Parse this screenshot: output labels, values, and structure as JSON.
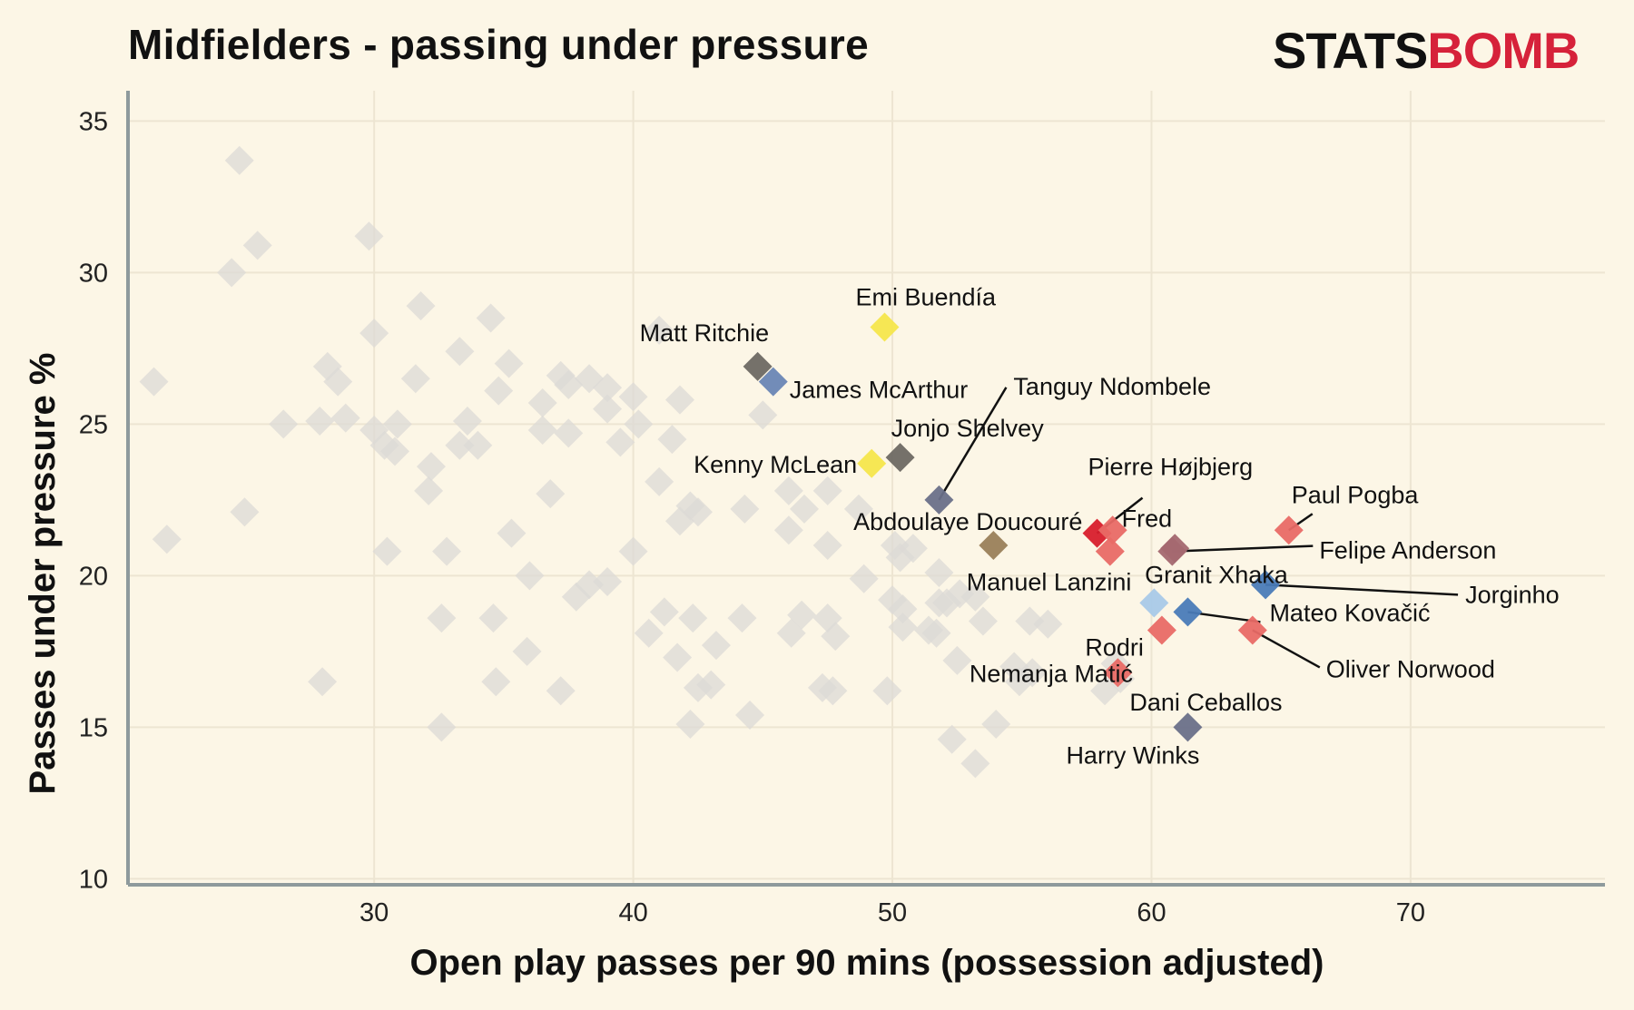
{
  "header": {
    "title": "Midfielders - passing under pressure",
    "logo_part1": "STATS",
    "logo_part2": "BOMB"
  },
  "colors": {
    "background": "#fcf6e6",
    "grid": "#ede5d2",
    "axis": "#8e9a9c",
    "background_points": "#dcdad6",
    "logo_black": "#111111",
    "logo_red": "#d6223a"
  },
  "chart_data": {
    "type": "scatter",
    "xlabel": "Open play passes per 90 mins (possession adjusted)",
    "ylabel": "Passes under pressure %",
    "xlim": [
      20.5,
      77.5
    ],
    "ylim": [
      9.8,
      36.0
    ],
    "xticks": [
      30,
      40,
      50,
      60,
      70
    ],
    "yticks": [
      10,
      15,
      20,
      25,
      30,
      35
    ],
    "grid": true,
    "marker": "diamond",
    "background_points": [
      [
        24.8,
        33.7
      ],
      [
        29.8,
        31.2
      ],
      [
        25.5,
        30.9
      ],
      [
        24.5,
        30.0
      ],
      [
        31.8,
        28.9
      ],
      [
        34.5,
        28.5
      ],
      [
        30.0,
        28.0
      ],
      [
        41.0,
        28.1
      ],
      [
        21.5,
        26.4
      ],
      [
        28.2,
        26.9
      ],
      [
        28.6,
        26.4
      ],
      [
        31.6,
        26.5
      ],
      [
        33.3,
        27.4
      ],
      [
        35.2,
        27.0
      ],
      [
        37.2,
        26.6
      ],
      [
        38.3,
        26.5
      ],
      [
        34.8,
        26.1
      ],
      [
        37.5,
        26.3
      ],
      [
        39.0,
        26.2
      ],
      [
        41.8,
        25.8
      ],
      [
        36.5,
        25.7
      ],
      [
        39.0,
        25.5
      ],
      [
        40.0,
        25.9
      ],
      [
        45.0,
        25.3
      ],
      [
        26.5,
        25.0
      ],
      [
        27.9,
        25.1
      ],
      [
        28.9,
        25.2
      ],
      [
        30.0,
        24.8
      ],
      [
        30.4,
        24.3
      ],
      [
        30.9,
        25.0
      ],
      [
        30.8,
        24.1
      ],
      [
        33.3,
        24.3
      ],
      [
        33.6,
        25.1
      ],
      [
        34.0,
        24.3
      ],
      [
        36.5,
        24.8
      ],
      [
        37.5,
        24.7
      ],
      [
        39.5,
        24.4
      ],
      [
        40.2,
        25.0
      ],
      [
        41.5,
        24.5
      ],
      [
        32.2,
        23.6
      ],
      [
        32.1,
        22.8
      ],
      [
        22.0,
        21.2
      ],
      [
        25.0,
        22.1
      ],
      [
        36.8,
        22.7
      ],
      [
        41.0,
        23.1
      ],
      [
        42.2,
        22.3
      ],
      [
        44.3,
        22.2
      ],
      [
        46.0,
        22.8
      ],
      [
        46.6,
        22.2
      ],
      [
        47.5,
        22.8
      ],
      [
        48.7,
        22.2
      ],
      [
        42.5,
        22.1
      ],
      [
        41.8,
        21.8
      ],
      [
        35.3,
        21.4
      ],
      [
        46.0,
        21.5
      ],
      [
        47.5,
        21.0
      ],
      [
        50.1,
        21.0
      ],
      [
        50.8,
        20.9
      ],
      [
        51.8,
        20.1
      ],
      [
        50.3,
        20.6
      ],
      [
        40.0,
        20.8
      ],
      [
        30.5,
        20.8
      ],
      [
        32.8,
        20.8
      ],
      [
        36.0,
        20.0
      ],
      [
        39.0,
        19.8
      ],
      [
        38.3,
        19.7
      ],
      [
        37.8,
        19.3
      ],
      [
        41.2,
        18.8
      ],
      [
        42.3,
        18.6
      ],
      [
        48.9,
        19.9
      ],
      [
        50.0,
        19.2
      ],
      [
        50.4,
        18.9
      ],
      [
        51.8,
        19.1
      ],
      [
        52.1,
        19.1
      ],
      [
        52.6,
        19.4
      ],
      [
        53.2,
        19.3
      ],
      [
        44.2,
        18.6
      ],
      [
        46.5,
        18.7
      ],
      [
        47.5,
        18.6
      ],
      [
        50.4,
        18.3
      ],
      [
        51.4,
        18.2
      ],
      [
        51.7,
        18.1
      ],
      [
        32.6,
        18.6
      ],
      [
        34.6,
        18.6
      ],
      [
        40.6,
        18.1
      ],
      [
        41.7,
        17.3
      ],
      [
        43.2,
        17.7
      ],
      [
        46.1,
        18.1
      ],
      [
        53.5,
        18.5
      ],
      [
        55.3,
        18.5
      ],
      [
        35.9,
        17.5
      ],
      [
        28.0,
        16.5
      ],
      [
        34.7,
        16.5
      ],
      [
        37.2,
        16.2
      ],
      [
        42.5,
        16.3
      ],
      [
        43.0,
        16.4
      ],
      [
        47.3,
        16.3
      ],
      [
        47.7,
        16.2
      ],
      [
        49.8,
        16.2
      ],
      [
        54.9,
        16.5
      ],
      [
        55.4,
        16.8
      ],
      [
        58.2,
        16.2
      ],
      [
        58.8,
        16.6
      ],
      [
        54.7,
        17.0
      ],
      [
        52.5,
        17.2
      ],
      [
        32.6,
        15.0
      ],
      [
        42.2,
        15.1
      ],
      [
        44.5,
        15.4
      ],
      [
        52.3,
        14.6
      ],
      [
        53.2,
        13.8
      ],
      [
        54.0,
        15.1
      ],
      [
        56.0,
        18.4
      ],
      [
        58.6,
        17.1
      ],
      [
        47.8,
        18.0
      ]
    ],
    "players": [
      {
        "name": "Emi Buendía",
        "x": 49.7,
        "y": 28.2,
        "color": "#f6e64c"
      },
      {
        "name": "Matt Ritchie",
        "x": 44.8,
        "y": 26.9,
        "color": "#6e6963"
      },
      {
        "name": "James McArthur",
        "x": 45.4,
        "y": 26.4,
        "color": "#6a86b5"
      },
      {
        "name": "Tanguy Ndombele",
        "x": 51.8,
        "y": 22.5,
        "color": "#6a7089"
      },
      {
        "name": "Jonjo Shelvey",
        "x": 50.3,
        "y": 23.9,
        "color": "#6e6963"
      },
      {
        "name": "Kenny McLean",
        "x": 49.2,
        "y": 23.7,
        "color": "#f6e64c"
      },
      {
        "name": "Abdoulaye Doucouré",
        "x": 53.9,
        "y": 21.0,
        "color": "#9a7f5a"
      },
      {
        "name": "Pierre Højbjerg",
        "x": 57.9,
        "y": 21.4,
        "color": "#d81d2c"
      },
      {
        "name": "Fred",
        "x": 58.5,
        "y": 21.5,
        "color": "#e96a66"
      },
      {
        "name": "Manuel Lanzini",
        "x": 58.4,
        "y": 20.8,
        "color": "#e96a66"
      },
      {
        "name": "Granit Xhaka",
        "x": 60.9,
        "y": 20.9,
        "color": "#a46870"
      },
      {
        "name": "Paul Pogba",
        "x": 65.3,
        "y": 21.5,
        "color": "#e96a66"
      },
      {
        "name": "Felipe Anderson",
        "x": 60.8,
        "y": 20.8,
        "color": "#a46870"
      },
      {
        "name": "Jorginho",
        "x": 64.4,
        "y": 19.7,
        "color": "#4a7bb8"
      },
      {
        "name": "Rodri",
        "x": 60.1,
        "y": 19.1,
        "color": "#a9c9e8"
      },
      {
        "name": "Mateo Kovačić",
        "x": 61.4,
        "y": 18.8,
        "color": "#4a7bb8"
      },
      {
        "name": "Nemanja Matić",
        "x": 60.4,
        "y": 18.2,
        "color": "#e96a66"
      },
      {
        "name": "Oliver Norwood",
        "x": 63.9,
        "y": 18.2,
        "color": "#e96a66"
      },
      {
        "name": "Dani Ceballos",
        "x": 58.7,
        "y": 16.8,
        "color": "#e96a66"
      },
      {
        "name": "Harry Winks",
        "x": 61.4,
        "y": 15.0,
        "color": "#6a7089"
      }
    ]
  }
}
